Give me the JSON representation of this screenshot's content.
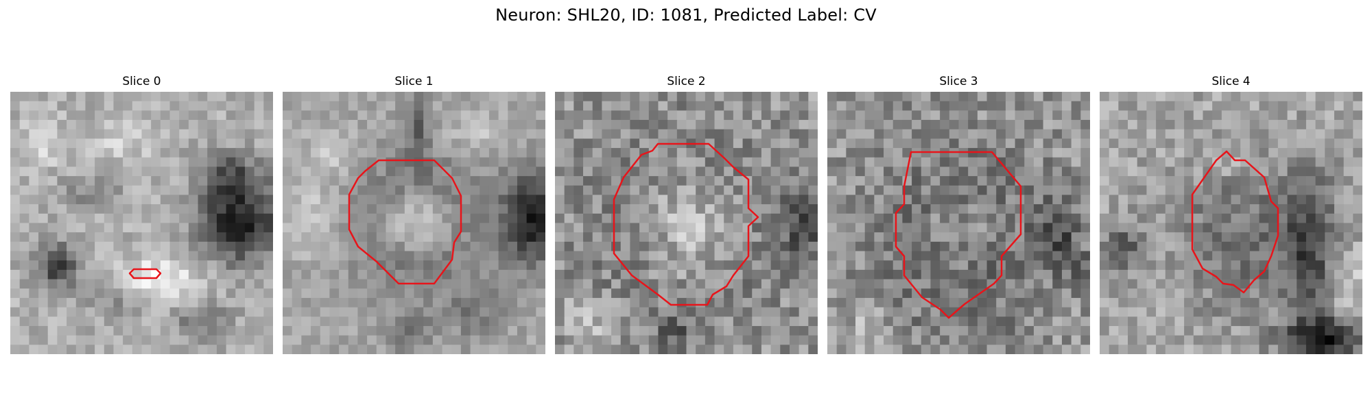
{
  "figure": {
    "title": "Neuron: SHL20, ID: 1081, Predicted Label: CV",
    "colors": {
      "contour": "#e8141a",
      "background": "#ffffff"
    },
    "panels": [
      {
        "title": "Slice 0"
      },
      {
        "title": "Slice 1"
      },
      {
        "title": "Slice 2"
      },
      {
        "title": "Slice 3"
      },
      {
        "title": "Slice 4"
      }
    ]
  }
}
